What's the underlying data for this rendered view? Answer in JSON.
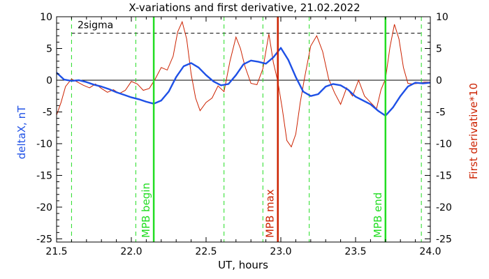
{
  "chart_data": {
    "type": "line",
    "title": "X-variations and first derivative, 21.02.2022",
    "xlabel": "UT, hours",
    "ylabel_left": "deltaX, nT",
    "ylabel_right": "First derivative*10",
    "xlim": [
      21.5,
      24.0
    ],
    "ylim": [
      -25.5,
      10
    ],
    "x_ticks": [
      "21.5",
      "22.0",
      "22.5",
      "23.0",
      "23.5",
      "24.0"
    ],
    "y_ticks": [
      "10",
      "5",
      "0",
      "-5",
      "-10",
      "-15",
      "-20",
      "-25"
    ],
    "grid": false,
    "threshold": {
      "label": "2sigma",
      "value": 7.4
    },
    "markers": [
      {
        "label": "MPB begin",
        "x": 22.15,
        "color": "#22dd22"
      },
      {
        "label": "MPB max",
        "x": 22.98,
        "color": "#cc2200"
      },
      {
        "label": "MPB end",
        "x": 23.7,
        "color": "#22dd22"
      }
    ],
    "dashed_markers_x": [
      21.6,
      22.03,
      22.62,
      22.88,
      23.19,
      23.94
    ],
    "colors": {
      "deltaX": "#1e50e6",
      "derivative": "#cc2200",
      "mpb": "#22dd22",
      "dashed_marker": "#22dd22"
    },
    "series": [
      {
        "name": "deltaX, nT",
        "x": [
          21.5,
          21.55,
          21.6,
          21.65,
          21.7,
          21.75,
          21.8,
          21.85,
          21.9,
          21.95,
          22.0,
          22.05,
          22.1,
          22.15,
          22.2,
          22.25,
          22.3,
          22.35,
          22.4,
          22.45,
          22.5,
          22.55,
          22.6,
          22.65,
          22.7,
          22.75,
          22.8,
          22.85,
          22.9,
          22.95,
          23.0,
          23.05,
          23.1,
          23.15,
          23.2,
          23.25,
          23.3,
          23.35,
          23.4,
          23.45,
          23.5,
          23.55,
          23.6,
          23.65,
          23.7,
          23.75,
          23.8,
          23.85,
          23.9,
          23.95,
          24.0
        ],
        "y": [
          1.2,
          0.1,
          -0.1,
          0,
          -0.3,
          -0.7,
          -1.0,
          -1.4,
          -1.9,
          -2.3,
          -2.7,
          -3.0,
          -3.4,
          -3.7,
          -3.2,
          -1.8,
          0.5,
          2.2,
          2.7,
          2.0,
          0.8,
          -0.2,
          -0.8,
          -0.6,
          0.8,
          2.5,
          3.1,
          2.9,
          2.6,
          3.6,
          5.1,
          3.2,
          0.5,
          -1.8,
          -2.5,
          -2.2,
          -1.0,
          -0.6,
          -0.8,
          -1.5,
          -2.6,
          -3.2,
          -3.8,
          -4.8,
          -5.6,
          -4.3,
          -2.5,
          -1.0,
          -0.4,
          -0.5,
          -0.4
        ]
      },
      {
        "name": "First derivative*10",
        "x": [
          21.5,
          21.53,
          21.56,
          21.6,
          21.64,
          21.68,
          21.72,
          21.76,
          21.8,
          21.84,
          21.88,
          21.92,
          21.96,
          22.0,
          22.04,
          22.08,
          22.12,
          22.16,
          22.2,
          22.24,
          22.28,
          22.31,
          22.34,
          22.37,
          22.4,
          22.43,
          22.46,
          22.5,
          22.54,
          22.58,
          22.62,
          22.66,
          22.7,
          22.73,
          22.76,
          22.8,
          22.84,
          22.88,
          22.92,
          22.95,
          22.98,
          23.01,
          23.04,
          23.07,
          23.1,
          23.13,
          23.16,
          23.2,
          23.24,
          23.28,
          23.32,
          23.36,
          23.4,
          23.44,
          23.48,
          23.52,
          23.56,
          23.6,
          23.64,
          23.67,
          23.7,
          23.73,
          23.76,
          23.79,
          23.82,
          23.85,
          23.88,
          23.92,
          23.96,
          24.0
        ],
        "y": [
          -5.5,
          -3.5,
          -1.0,
          0.2,
          -0.3,
          -0.8,
          -1.2,
          -0.6,
          -1.3,
          -1.9,
          -1.5,
          -2.1,
          -1.6,
          -0.2,
          -0.6,
          -1.6,
          -1.3,
          0.2,
          2.0,
          1.6,
          3.8,
          7.6,
          9.2,
          6.5,
          1.0,
          -2.8,
          -4.8,
          -3.5,
          -2.8,
          -0.9,
          -1.8,
          3.0,
          6.8,
          5.0,
          2.2,
          -0.5,
          -0.7,
          1.8,
          7.3,
          2.8,
          -0.2,
          -4.5,
          -9.5,
          -10.5,
          -8.5,
          -3.5,
          0.5,
          5.4,
          7.0,
          4.5,
          0.2,
          -2.0,
          -3.8,
          -1.2,
          -2.5,
          0.0,
          -2.5,
          -3.5,
          -4.5,
          -1.5,
          0.2,
          5.2,
          8.8,
          6.5,
          2.0,
          -0.5,
          -0.6,
          -0.5,
          -0.3,
          -0.3
        ]
      }
    ]
  }
}
